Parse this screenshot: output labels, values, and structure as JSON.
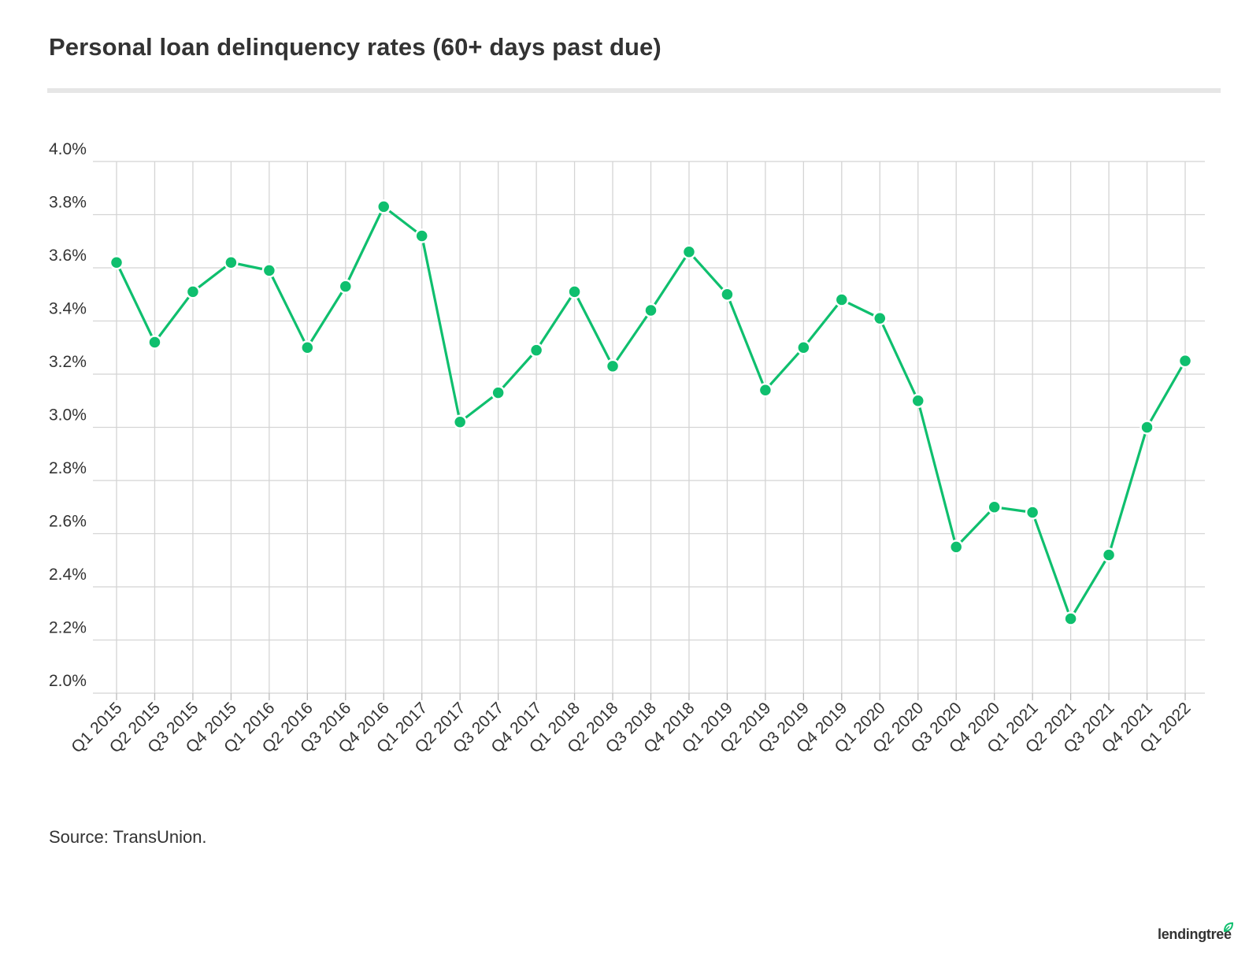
{
  "title": "Personal loan delinquency rates (60+ days past due)",
  "source": "Source: TransUnion.",
  "brand": {
    "name": "lendingtree",
    "icon": "leaf-icon",
    "accent_color": "#0fbf6e"
  },
  "chart_data": {
    "type": "line",
    "title": "Personal loan delinquency rates (60+ days past due)",
    "xlabel": "",
    "ylabel": "",
    "ylim": [
      2.0,
      4.0
    ],
    "y_ticks": [
      2.0,
      2.2,
      2.4,
      2.6,
      2.8,
      3.0,
      3.2,
      3.4,
      3.6,
      3.8,
      4.0
    ],
    "y_tick_labels": [
      "2.0%",
      "2.2%",
      "2.4%",
      "2.6%",
      "2.8%",
      "3.0%",
      "3.2%",
      "3.4%",
      "3.6%",
      "3.8%",
      "4.0%"
    ],
    "grid": true,
    "legend": "none",
    "line_color": "#0fbf6e",
    "categories": [
      "Q1 2015",
      "Q2 2015",
      "Q3 2015",
      "Q4 2015",
      "Q1 2016",
      "Q2 2016",
      "Q3 2016",
      "Q4 2016",
      "Q1 2017",
      "Q2 2017",
      "Q3 2017",
      "Q4 2017",
      "Q1 2018",
      "Q2 2018",
      "Q3 2018",
      "Q4 2018",
      "Q1 2019",
      "Q2 2019",
      "Q3 2019",
      "Q4 2019",
      "Q1 2020",
      "Q2 2020",
      "Q3 2020",
      "Q4 2020",
      "Q1 2021",
      "Q2 2021",
      "Q3 2021",
      "Q4 2021",
      "Q1 2022"
    ],
    "series": [
      {
        "values": [
          3.62,
          3.32,
          3.51,
          3.62,
          3.59,
          3.3,
          3.53,
          3.83,
          3.72,
          3.02,
          3.13,
          3.29,
          3.51,
          3.23,
          3.44,
          3.66,
          3.5,
          3.14,
          3.3,
          3.48,
          3.41,
          3.1,
          2.55,
          2.7,
          2.68,
          2.28,
          2.52,
          3.0,
          3.25
        ]
      }
    ]
  }
}
